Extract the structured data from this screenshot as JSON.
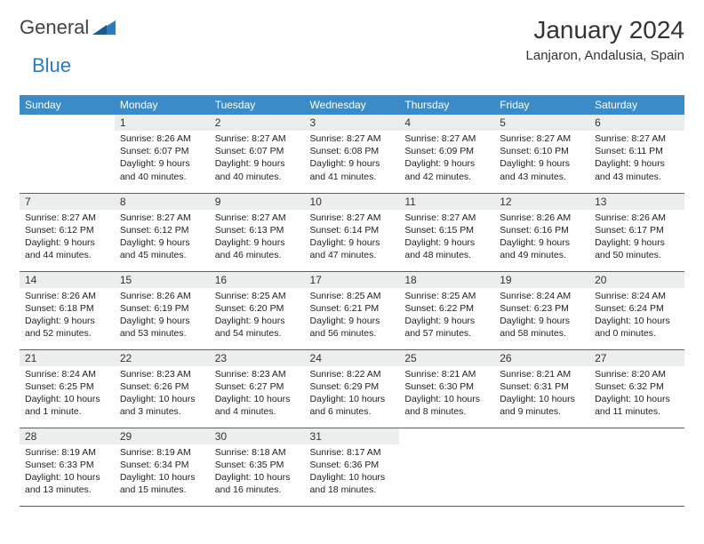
{
  "brand": {
    "part1": "General",
    "part2": "Blue"
  },
  "title": "January 2024",
  "location": "Lanjaron, Andalusia, Spain",
  "colors": {
    "header_bg": "#3b8bc9",
    "header_fg": "#ffffff",
    "daynum_bg": "#eceded",
    "rule": "#2b6ca3",
    "brand_blue": "#2b7bbf"
  },
  "weekdays": [
    "Sunday",
    "Monday",
    "Tuesday",
    "Wednesday",
    "Thursday",
    "Friday",
    "Saturday"
  ],
  "layout": {
    "first_weekday_index": 1,
    "days_in_month": 31
  },
  "days": {
    "1": {
      "sunrise": "8:26 AM",
      "sunset": "6:07 PM",
      "daylight": "9 hours and 40 minutes."
    },
    "2": {
      "sunrise": "8:27 AM",
      "sunset": "6:07 PM",
      "daylight": "9 hours and 40 minutes."
    },
    "3": {
      "sunrise": "8:27 AM",
      "sunset": "6:08 PM",
      "daylight": "9 hours and 41 minutes."
    },
    "4": {
      "sunrise": "8:27 AM",
      "sunset": "6:09 PM",
      "daylight": "9 hours and 42 minutes."
    },
    "5": {
      "sunrise": "8:27 AM",
      "sunset": "6:10 PM",
      "daylight": "9 hours and 43 minutes."
    },
    "6": {
      "sunrise": "8:27 AM",
      "sunset": "6:11 PM",
      "daylight": "9 hours and 43 minutes."
    },
    "7": {
      "sunrise": "8:27 AM",
      "sunset": "6:12 PM",
      "daylight": "9 hours and 44 minutes."
    },
    "8": {
      "sunrise": "8:27 AM",
      "sunset": "6:12 PM",
      "daylight": "9 hours and 45 minutes."
    },
    "9": {
      "sunrise": "8:27 AM",
      "sunset": "6:13 PM",
      "daylight": "9 hours and 46 minutes."
    },
    "10": {
      "sunrise": "8:27 AM",
      "sunset": "6:14 PM",
      "daylight": "9 hours and 47 minutes."
    },
    "11": {
      "sunrise": "8:27 AM",
      "sunset": "6:15 PM",
      "daylight": "9 hours and 48 minutes."
    },
    "12": {
      "sunrise": "8:26 AM",
      "sunset": "6:16 PM",
      "daylight": "9 hours and 49 minutes."
    },
    "13": {
      "sunrise": "8:26 AM",
      "sunset": "6:17 PM",
      "daylight": "9 hours and 50 minutes."
    },
    "14": {
      "sunrise": "8:26 AM",
      "sunset": "6:18 PM",
      "daylight": "9 hours and 52 minutes."
    },
    "15": {
      "sunrise": "8:26 AM",
      "sunset": "6:19 PM",
      "daylight": "9 hours and 53 minutes."
    },
    "16": {
      "sunrise": "8:25 AM",
      "sunset": "6:20 PM",
      "daylight": "9 hours and 54 minutes."
    },
    "17": {
      "sunrise": "8:25 AM",
      "sunset": "6:21 PM",
      "daylight": "9 hours and 56 minutes."
    },
    "18": {
      "sunrise": "8:25 AM",
      "sunset": "6:22 PM",
      "daylight": "9 hours and 57 minutes."
    },
    "19": {
      "sunrise": "8:24 AM",
      "sunset": "6:23 PM",
      "daylight": "9 hours and 58 minutes."
    },
    "20": {
      "sunrise": "8:24 AM",
      "sunset": "6:24 PM",
      "daylight": "10 hours and 0 minutes."
    },
    "21": {
      "sunrise": "8:24 AM",
      "sunset": "6:25 PM",
      "daylight": "10 hours and 1 minute."
    },
    "22": {
      "sunrise": "8:23 AM",
      "sunset": "6:26 PM",
      "daylight": "10 hours and 3 minutes."
    },
    "23": {
      "sunrise": "8:23 AM",
      "sunset": "6:27 PM",
      "daylight": "10 hours and 4 minutes."
    },
    "24": {
      "sunrise": "8:22 AM",
      "sunset": "6:29 PM",
      "daylight": "10 hours and 6 minutes."
    },
    "25": {
      "sunrise": "8:21 AM",
      "sunset": "6:30 PM",
      "daylight": "10 hours and 8 minutes."
    },
    "26": {
      "sunrise": "8:21 AM",
      "sunset": "6:31 PM",
      "daylight": "10 hours and 9 minutes."
    },
    "27": {
      "sunrise": "8:20 AM",
      "sunset": "6:32 PM",
      "daylight": "10 hours and 11 minutes."
    },
    "28": {
      "sunrise": "8:19 AM",
      "sunset": "6:33 PM",
      "daylight": "10 hours and 13 minutes."
    },
    "29": {
      "sunrise": "8:19 AM",
      "sunset": "6:34 PM",
      "daylight": "10 hours and 15 minutes."
    },
    "30": {
      "sunrise": "8:18 AM",
      "sunset": "6:35 PM",
      "daylight": "10 hours and 16 minutes."
    },
    "31": {
      "sunrise": "8:17 AM",
      "sunset": "6:36 PM",
      "daylight": "10 hours and 18 minutes."
    }
  },
  "labels": {
    "sunrise": "Sunrise: ",
    "sunset": "Sunset: ",
    "daylight": "Daylight: "
  }
}
